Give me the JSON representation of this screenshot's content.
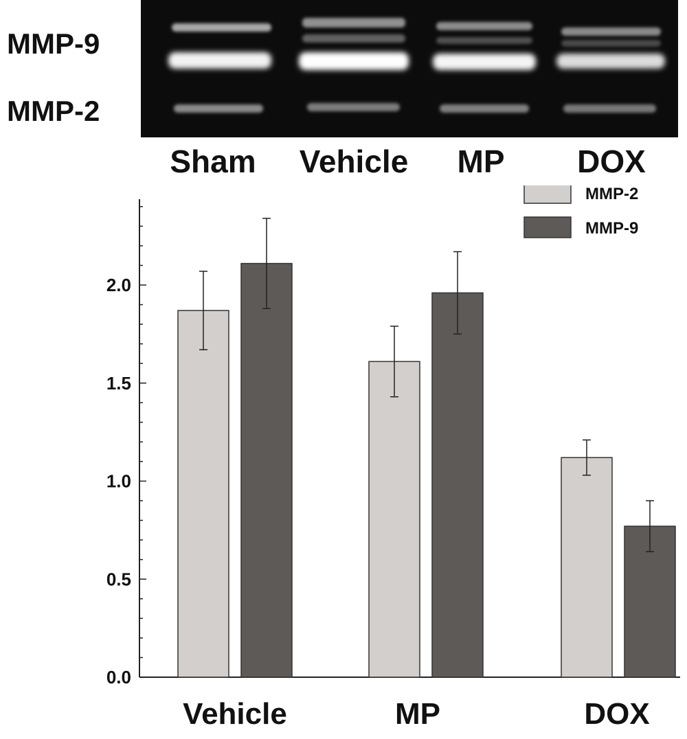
{
  "gel": {
    "band_labels": [
      "MMP-9",
      "MMP-2"
    ],
    "lane_labels": [
      "Sham",
      "Vehicle",
      "MP",
      "DOX"
    ]
  },
  "chart_data": {
    "type": "bar",
    "categories": [
      "Vehicle",
      "MP",
      "DOX"
    ],
    "series": [
      {
        "name": "MMP-2",
        "color": "#d2cfcd",
        "values": [
          1.87,
          1.61,
          1.12
        ],
        "errors": [
          0.2,
          0.18,
          0.09
        ]
      },
      {
        "name": "MMP-9",
        "color": "#5e5a58",
        "values": [
          2.11,
          1.96,
          0.77
        ],
        "errors": [
          0.23,
          0.21,
          0.13
        ]
      }
    ],
    "yticks": [
      "0.0",
      "0.5",
      "1.0",
      "1.5",
      "2.0"
    ],
    "ylim": [
      0,
      2.5
    ],
    "title": "",
    "xlabel": "",
    "ylabel": "",
    "legend": "top-right",
    "grid": false
  }
}
